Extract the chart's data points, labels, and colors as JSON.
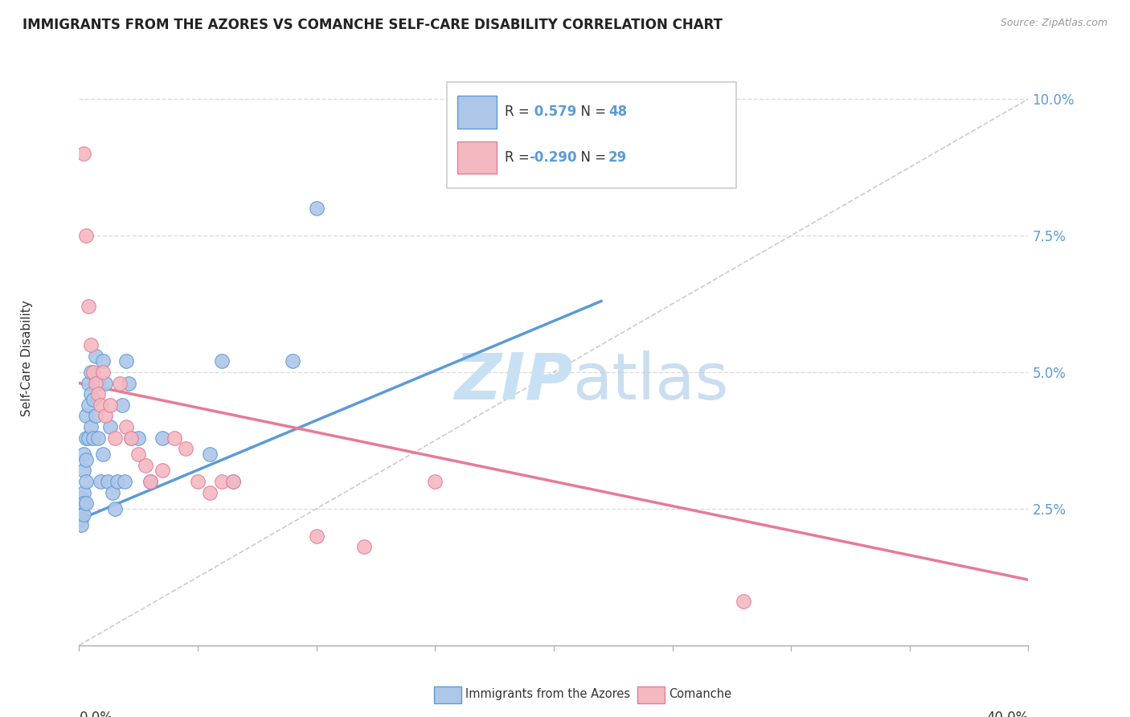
{
  "title": "IMMIGRANTS FROM THE AZORES VS COMANCHE SELF-CARE DISABILITY CORRELATION CHART",
  "source": "Source: ZipAtlas.com",
  "ylabel": "Self-Care Disability",
  "ytick_labels": [
    "2.5%",
    "5.0%",
    "7.5%",
    "10.0%"
  ],
  "ytick_vals": [
    0.025,
    0.05,
    0.075,
    0.1
  ],
  "legend_entries": [
    {
      "label": "Immigrants from the Azores",
      "R": 0.579,
      "N": 48,
      "scatter_color": "#aec6e8",
      "line_color": "#5b9bd5"
    },
    {
      "label": "Comanche",
      "R": -0.29,
      "N": 29,
      "scatter_color": "#f4b8c1",
      "line_color": "#e87a96"
    }
  ],
  "watermark_zip": "ZIP",
  "watermark_atlas": "atlas",
  "blue_scatter_x": [
    0.001,
    0.001,
    0.001,
    0.001,
    0.002,
    0.002,
    0.002,
    0.002,
    0.002,
    0.003,
    0.003,
    0.003,
    0.003,
    0.003,
    0.004,
    0.004,
    0.004,
    0.005,
    0.005,
    0.005,
    0.006,
    0.006,
    0.007,
    0.007,
    0.008,
    0.008,
    0.009,
    0.01,
    0.01,
    0.011,
    0.012,
    0.013,
    0.014,
    0.015,
    0.016,
    0.018,
    0.019,
    0.02,
    0.021,
    0.022,
    0.025,
    0.03,
    0.035,
    0.055,
    0.06,
    0.065,
    0.09,
    0.1
  ],
  "blue_scatter_y": [
    0.027,
    0.025,
    0.023,
    0.022,
    0.035,
    0.032,
    0.028,
    0.026,
    0.024,
    0.042,
    0.038,
    0.034,
    0.03,
    0.026,
    0.048,
    0.044,
    0.038,
    0.05,
    0.046,
    0.04,
    0.045,
    0.038,
    0.053,
    0.042,
    0.048,
    0.038,
    0.03,
    0.052,
    0.035,
    0.048,
    0.03,
    0.04,
    0.028,
    0.025,
    0.03,
    0.044,
    0.03,
    0.052,
    0.048,
    0.038,
    0.038,
    0.03,
    0.038,
    0.035,
    0.052,
    0.03,
    0.052,
    0.08
  ],
  "pink_scatter_x": [
    0.002,
    0.003,
    0.004,
    0.005,
    0.006,
    0.007,
    0.008,
    0.009,
    0.01,
    0.011,
    0.013,
    0.015,
    0.017,
    0.02,
    0.022,
    0.025,
    0.028,
    0.03,
    0.035,
    0.04,
    0.045,
    0.05,
    0.055,
    0.06,
    0.065,
    0.1,
    0.12,
    0.15,
    0.28
  ],
  "pink_scatter_y": [
    0.09,
    0.075,
    0.062,
    0.055,
    0.05,
    0.048,
    0.046,
    0.044,
    0.05,
    0.042,
    0.044,
    0.038,
    0.048,
    0.04,
    0.038,
    0.035,
    0.033,
    0.03,
    0.032,
    0.038,
    0.036,
    0.03,
    0.028,
    0.03,
    0.03,
    0.02,
    0.018,
    0.03,
    0.008
  ],
  "blue_line_x": [
    0.0,
    0.22
  ],
  "blue_line_y": [
    0.023,
    0.063
  ],
  "pink_line_x": [
    0.0,
    0.4
  ],
  "pink_line_y": [
    0.048,
    0.012
  ],
  "diag_line_x": [
    0.0,
    0.4
  ],
  "diag_line_y": [
    0.0,
    0.1
  ],
  "xlim": [
    0.0,
    0.4
  ],
  "ylim": [
    0.0,
    0.105
  ],
  "diag_line_color": "#cccccc",
  "grid_color": "#dddddd",
  "label_color": "#5b9bd5",
  "text_color": "#333333"
}
